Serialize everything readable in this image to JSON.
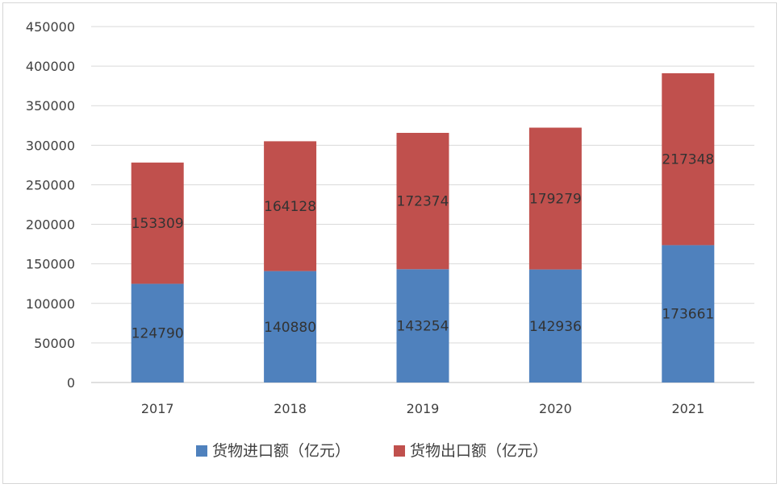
{
  "chart_data": {
    "type": "bar",
    "stacked": true,
    "categories": [
      "2017",
      "2018",
      "2019",
      "2020",
      "2021"
    ],
    "series": [
      {
        "name": "货物进口额（亿元）",
        "color": "#4f81bd",
        "values": [
          124790,
          140880,
          143254,
          142936,
          173661
        ]
      },
      {
        "name": "货物出口额（亿元）",
        "color": "#c0504d",
        "values": [
          153309,
          164128,
          172374,
          179279,
          217348
        ]
      }
    ],
    "ylim": [
      0,
      450000
    ],
    "yticks": [
      0,
      50000,
      100000,
      150000,
      200000,
      250000,
      300000,
      350000,
      400000,
      450000
    ],
    "grid": true,
    "legend_position": "bottom",
    "data_labels": true
  }
}
